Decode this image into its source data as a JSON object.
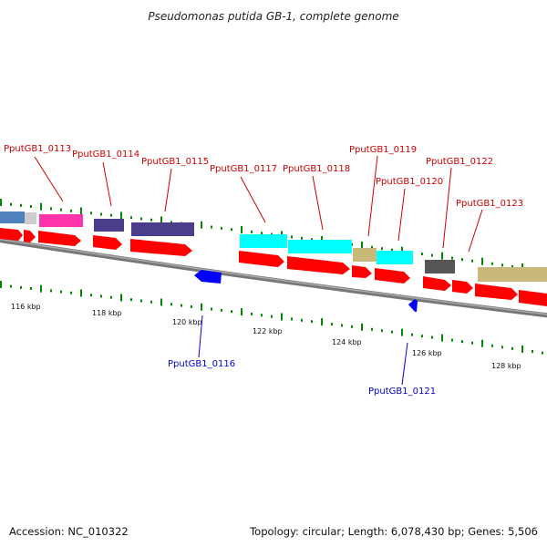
{
  "title": "Pseudomonas putida GB-1, complete genome",
  "footer": {
    "accession": "Accession: NC_010322",
    "topology": "Topology: circular; Length: 6,078,430 bp; Genes: 5,506"
  },
  "colors": {
    "backbone": "#888888",
    "forward_gene": "#ff0000",
    "reverse_gene": "#0000ff",
    "forward_label": "#cc0000",
    "reverse_label": "#0000cc",
    "tick": "#008800",
    "cds_blue": "#4f81bd",
    "cds_pink": "#ff33aa",
    "cds_purple": "#4b3d8c",
    "cds_cyan": "#00ffff",
    "cds_tan": "#c8b87a",
    "cds_gray": "#555555",
    "cds_lightgray": "#cccccc"
  },
  "ticks": [
    {
      "label": "116 kbp"
    },
    {
      "label": "118 kbp"
    },
    {
      "label": "120 kbp"
    },
    {
      "label": "122 kbp"
    },
    {
      "label": "124 kbp"
    },
    {
      "label": "126 kbp"
    },
    {
      "label": "128 kbp"
    }
  ],
  "forward_labels": [
    {
      "label": "PputGB1_0113"
    },
    {
      "label": "PputGB1_0114"
    },
    {
      "label": "PputGB1_0115"
    },
    {
      "label": "PputGB1_0117"
    },
    {
      "label": "PputGB1_0118"
    },
    {
      "label": "PputGB1_0119"
    },
    {
      "label": "PputGB1_0120"
    },
    {
      "label": "PputGB1_0122"
    },
    {
      "label": "PputGB1_0123"
    }
  ],
  "reverse_labels": [
    {
      "label": "PputGB1_0116"
    },
    {
      "label": "PputGB1_0121"
    }
  ]
}
